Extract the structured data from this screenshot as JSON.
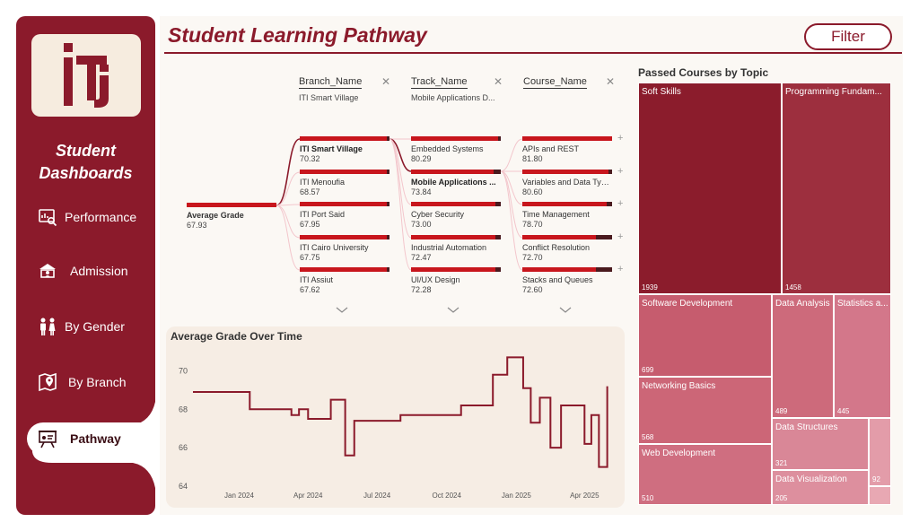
{
  "sidebar": {
    "title_line1": "Student",
    "title_line2": "Dashboards",
    "items": [
      {
        "label": "Performance",
        "icon": "performance-icon"
      },
      {
        "label": "Admission",
        "icon": "admission-icon"
      },
      {
        "label": "By Gender",
        "icon": "gender-icon"
      },
      {
        "label": "By Branch",
        "icon": "branch-icon"
      },
      {
        "label": "Pathway",
        "icon": "pathway-icon"
      }
    ],
    "accent": "#8b1a2b"
  },
  "header": {
    "title": "Student Learning Pathway",
    "filter_label": "Filter"
  },
  "tree": {
    "root": {
      "label": "Average Grade",
      "value": "67.93"
    },
    "columns": [
      {
        "name": "Branch_Name",
        "selected": "ITI Smart Village"
      },
      {
        "name": "Track_Name",
        "selected": "Mobile Applications D..."
      },
      {
        "name": "Course_Name",
        "selected": ""
      }
    ],
    "branch": [
      {
        "label": "ITI Smart Village",
        "value": "70.32"
      },
      {
        "label": "ITI Menoufia",
        "value": "68.57"
      },
      {
        "label": "ITI Port Said",
        "value": "67.95"
      },
      {
        "label": "ITI Cairo University",
        "value": "67.75"
      },
      {
        "label": "ITI Assiut",
        "value": "67.62"
      }
    ],
    "track": [
      {
        "label": "Embedded Systems",
        "value": "80.29"
      },
      {
        "label": "Mobile Applications ...",
        "value": "73.84"
      },
      {
        "label": "Cyber Security",
        "value": "73.00"
      },
      {
        "label": "Industrial Automation",
        "value": "72.47"
      },
      {
        "label": "UI/UX Design",
        "value": "72.28"
      }
    ],
    "course": [
      {
        "label": "APIs and REST",
        "value": "81.80"
      },
      {
        "label": "Variables and Data Typ...",
        "value": "80.60"
      },
      {
        "label": "Time Management",
        "value": "78.70"
      },
      {
        "label": "Conflict Resolution",
        "value": "72.70"
      },
      {
        "label": "Stacks and Queues",
        "value": "72.60"
      }
    ]
  },
  "chart_data": [
    {
      "type": "line",
      "title": "Average Grade Over Time",
      "y_ticks": [
        "70",
        "68",
        "66",
        "64"
      ],
      "x_ticks": [
        "Jan 2024",
        "Apr 2024",
        "Jul 2024",
        "Oct 2024",
        "Jan 2025",
        "Apr 2025"
      ],
      "ylim": [
        64,
        71
      ],
      "step": true,
      "points": [
        {
          "x": "2023-11",
          "y": 68.9
        },
        {
          "x": "2024-01",
          "y": 68.9
        },
        {
          "x": "2024-01-15",
          "y": 68.0
        },
        {
          "x": "2024-03",
          "y": 68.0
        },
        {
          "x": "2024-03-10",
          "y": 67.7
        },
        {
          "x": "2024-03-20",
          "y": 68.0
        },
        {
          "x": "2024-04-01",
          "y": 67.5
        },
        {
          "x": "2024-05-01",
          "y": 68.5
        },
        {
          "x": "2024-05-20",
          "y": 65.6
        },
        {
          "x": "2024-06-01",
          "y": 67.4
        },
        {
          "x": "2024-08-01",
          "y": 67.7
        },
        {
          "x": "2024-10-01",
          "y": 67.7
        },
        {
          "x": "2024-10-20",
          "y": 68.2
        },
        {
          "x": "2024-12-01",
          "y": 69.8
        },
        {
          "x": "2024-12-20",
          "y": 70.7
        },
        {
          "x": "2025-01-10",
          "y": 69.1
        },
        {
          "x": "2025-01-20",
          "y": 67.3
        },
        {
          "x": "2025-02-01",
          "y": 68.6
        },
        {
          "x": "2025-02-15",
          "y": 66.0
        },
        {
          "x": "2025-03-01",
          "y": 68.2
        },
        {
          "x": "2025-03-20",
          "y": 68.2
        },
        {
          "x": "2025-04-01",
          "y": 66.2
        },
        {
          "x": "2025-04-10",
          "y": 67.7
        },
        {
          "x": "2025-04-20",
          "y": 65.0
        },
        {
          "x": "2025-05-01",
          "y": 69.2
        }
      ]
    },
    {
      "type": "treemap",
      "title": "Passed Courses by Topic",
      "items": [
        {
          "name": "Soft Skills",
          "value": 1939
        },
        {
          "name": "Programming Fundam...",
          "value": 1458
        },
        {
          "name": "Software Development",
          "value": 699
        },
        {
          "name": "Data Analysis",
          "value": 489
        },
        {
          "name": "Statistics a...",
          "value": 445
        },
        {
          "name": "Networking Basics",
          "value": 568
        },
        {
          "name": "Web Development",
          "value": 510
        },
        {
          "name": "Data Structures",
          "value": 321
        },
        {
          "name": "Data Visualization",
          "value": 205
        },
        {
          "name": "",
          "value": 92
        }
      ]
    }
  ],
  "colors": {
    "primary": "#8b1a2b",
    "bar_red": "#c8161d",
    "bar_dark": "#4a1a1e",
    "cream": "#f6ede4"
  }
}
